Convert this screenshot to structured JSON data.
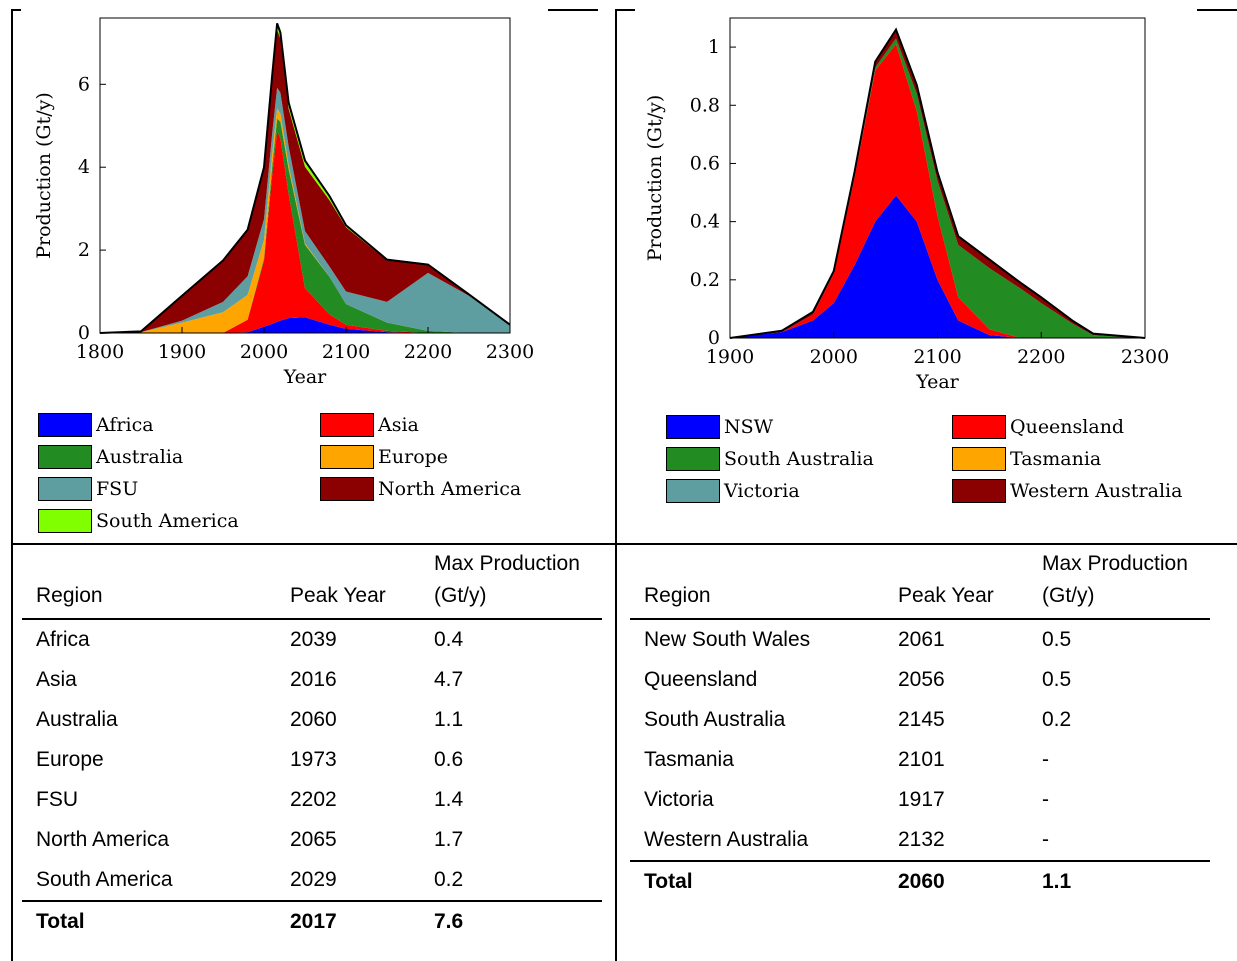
{
  "chart_data": [
    {
      "type": "area",
      "stacked": true,
      "xlabel": "Year",
      "ylabel": "Production (Gt/y)",
      "xlim": [
        1800,
        2300
      ],
      "ylim": [
        0,
        7.6
      ],
      "xticks": [
        "1800",
        "1900",
        "2000",
        "2100",
        "2200",
        "2300"
      ],
      "yticks": [
        "0",
        "2",
        "4",
        "6"
      ],
      "x": [
        1800,
        1850,
        1900,
        1950,
        1980,
        2000,
        2010,
        2016,
        2020,
        2030,
        2050,
        2080,
        2100,
        2150,
        2200,
        2250,
        2300
      ],
      "legend_position": "bottom",
      "series": [
        {
          "name": "Africa",
          "color": "#0000ff",
          "values": [
            0,
            0,
            0,
            0,
            0.02,
            0.15,
            0.22,
            0.27,
            0.3,
            0.36,
            0.38,
            0.2,
            0.1,
            0.02,
            0,
            0,
            0
          ]
        },
        {
          "name": "Asia",
          "color": "#ff0000",
          "values": [
            0,
            0,
            0,
            0,
            0.3,
            1.6,
            3.6,
            4.6,
            4.4,
            3.0,
            0.7,
            0.25,
            0.1,
            0.03,
            0,
            0,
            0
          ]
        },
        {
          "name": "Australia",
          "color": "#228b22",
          "values": [
            0,
            0,
            0,
            0,
            0,
            0.05,
            0.2,
            0.3,
            0.4,
            0.6,
            1.05,
            0.9,
            0.5,
            0.2,
            0.05,
            0,
            0
          ]
        },
        {
          "name": "Europe",
          "color": "#ffa500",
          "values": [
            0,
            0.02,
            0.25,
            0.5,
            0.6,
            0.45,
            0.3,
            0.25,
            0.2,
            0.1,
            0.03,
            0,
            0,
            0,
            0,
            0,
            0
          ]
        },
        {
          "name": "FSU",
          "color": "#5f9ea0",
          "values": [
            0,
            0,
            0.05,
            0.25,
            0.45,
            0.5,
            0.5,
            0.5,
            0.5,
            0.45,
            0.3,
            0.25,
            0.3,
            0.5,
            1.4,
            0.9,
            0.2
          ]
        },
        {
          "name": "North America",
          "color": "#8b0000",
          "values": [
            0,
            0.02,
            0.6,
            1.0,
            1.1,
            1.2,
            1.3,
            1.4,
            1.3,
            0.9,
            1.55,
            1.6,
            1.55,
            1.0,
            0.2,
            0.03,
            0
          ]
        },
        {
          "name": "South America",
          "color": "#7fff00",
          "values": [
            0,
            0,
            0,
            0,
            0.02,
            0.05,
            0.1,
            0.15,
            0.15,
            0.15,
            0.15,
            0.1,
            0.05,
            0.02,
            0,
            0,
            0
          ]
        }
      ],
      "legend": [
        {
          "name": "Africa",
          "color": "#0000ff"
        },
        {
          "name": "Asia",
          "color": "#ff0000"
        },
        {
          "name": "Australia",
          "color": "#228b22"
        },
        {
          "name": "Europe",
          "color": "#ffa500"
        },
        {
          "name": "FSU",
          "color": "#5f9ea0"
        },
        {
          "name": "North America",
          "color": "#8b0000"
        },
        {
          "name": "South America",
          "color": "#7fff00"
        }
      ]
    },
    {
      "type": "area",
      "stacked": true,
      "xlabel": "Year",
      "ylabel": "Production (Gt/y)",
      "xlim": [
        1900,
        2300
      ],
      "ylim": [
        0,
        1.1
      ],
      "xticks": [
        "1900",
        "2000",
        "2100",
        "2200",
        "2300"
      ],
      "yticks": [
        "0",
        "0.2",
        "0.4",
        "0.6",
        "0.8",
        "1"
      ],
      "x": [
        1900,
        1950,
        1980,
        2000,
        2020,
        2040,
        2060,
        2080,
        2100,
        2120,
        2150,
        2180,
        2200,
        2230,
        2250,
        2300
      ],
      "legend_position": "bottom",
      "series": [
        {
          "name": "NSW",
          "color": "#0000ff",
          "values": [
            0,
            0.02,
            0.06,
            0.12,
            0.25,
            0.4,
            0.49,
            0.4,
            0.2,
            0.06,
            0.01,
            0,
            0,
            0,
            0,
            0
          ]
        },
        {
          "name": "Queensland",
          "color": "#ff0000",
          "values": [
            0,
            0,
            0.02,
            0.1,
            0.3,
            0.52,
            0.52,
            0.38,
            0.22,
            0.08,
            0.02,
            0,
            0,
            0,
            0,
            0
          ]
        },
        {
          "name": "South Australia",
          "color": "#228b22",
          "values": [
            0,
            0,
            0,
            0,
            0,
            0.01,
            0.02,
            0.06,
            0.12,
            0.18,
            0.21,
            0.17,
            0.12,
            0.05,
            0.01,
            0
          ]
        },
        {
          "name": "Tasmania",
          "color": "#ffa500",
          "values": [
            0,
            0,
            0,
            0,
            0,
            0,
            0,
            0,
            0,
            0,
            0,
            0,
            0,
            0,
            0,
            0
          ]
        },
        {
          "name": "Victoria",
          "color": "#5f9ea0",
          "values": [
            0,
            0,
            0,
            0,
            0,
            0,
            0,
            0,
            0,
            0,
            0,
            0,
            0,
            0,
            0,
            0
          ]
        },
        {
          "name": "Western Australia",
          "color": "#8b0000",
          "values": [
            0,
            0.005,
            0.01,
            0.01,
            0.02,
            0.02,
            0.03,
            0.03,
            0.03,
            0.03,
            0.03,
            0.02,
            0.02,
            0.01,
            0.005,
            0
          ]
        }
      ],
      "legend": [
        {
          "name": "NSW",
          "color": "#0000ff"
        },
        {
          "name": "Queensland",
          "color": "#ff0000"
        },
        {
          "name": "South Australia",
          "color": "#228b22"
        },
        {
          "name": "Tasmania",
          "color": "#ffa500"
        },
        {
          "name": "Victoria",
          "color": "#5f9ea0"
        },
        {
          "name": "Western Australia",
          "color": "#8b0000"
        }
      ]
    },
    {
      "type": "table",
      "columns": [
        "Region",
        "Peak Year",
        "Max Production (Gt/y)"
      ],
      "rows": [
        [
          "Africa",
          "2039",
          "0.4"
        ],
        [
          "Asia",
          "2016",
          "4.7"
        ],
        [
          "Australia",
          "2060",
          "1.1"
        ],
        [
          "Europe",
          "1973",
          "0.6"
        ],
        [
          "FSU",
          "2202",
          "1.4"
        ],
        [
          "North America",
          "2065",
          "1.7"
        ],
        [
          "South America",
          "2029",
          "0.2"
        ]
      ],
      "total": [
        "Total",
        "2017",
        "7.6"
      ]
    },
    {
      "type": "table",
      "columns": [
        "Region",
        "Peak Year",
        "Max Production (Gt/y)"
      ],
      "rows": [
        [
          "New South Wales",
          "2061",
          "0.5"
        ],
        [
          "Queensland",
          "2056",
          "0.5"
        ],
        [
          "South Australia",
          "2145",
          "0.2"
        ],
        [
          "Tasmania",
          "2101",
          "-"
        ],
        [
          "Victoria",
          "1917",
          "-"
        ],
        [
          "Western Australia",
          "2132",
          "-"
        ]
      ],
      "total": [
        "Total",
        "2060",
        "1.1"
      ]
    }
  ]
}
